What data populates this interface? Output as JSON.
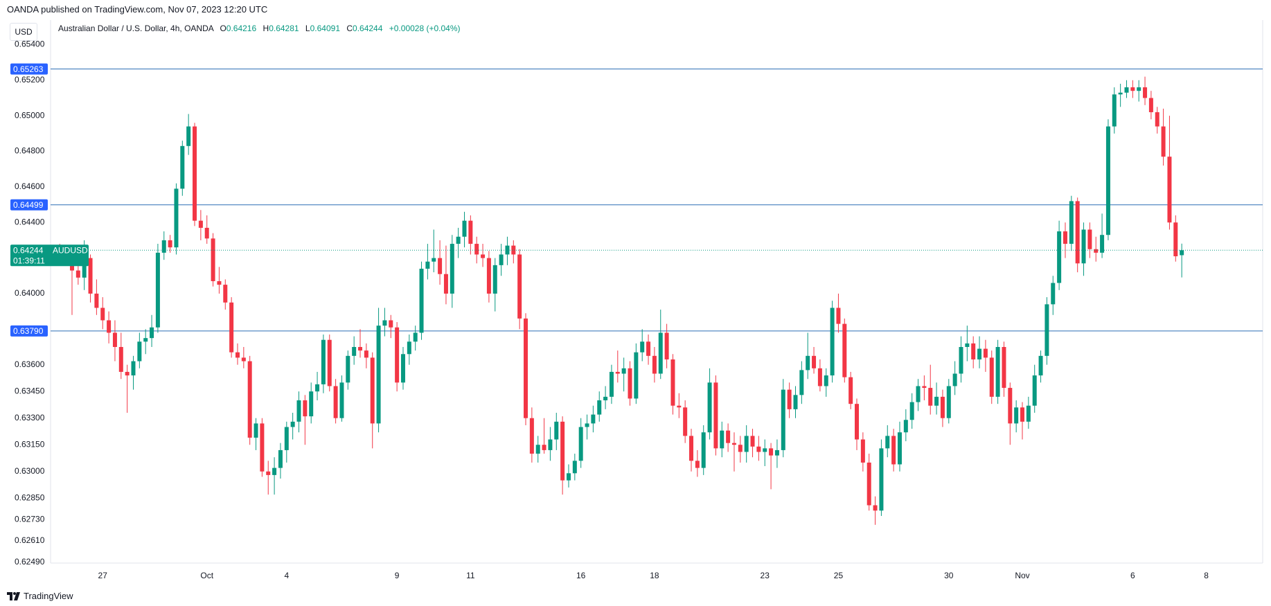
{
  "header": "OANDA published on TradingView.com, Nov 07, 2023 12:20 UTC",
  "currency": "USD",
  "brand": "TradingView",
  "chart_data": {
    "type": "candlestick",
    "legend": {
      "title": "Australian Dollar / U.S. Dollar, 4h, OANDA",
      "fields": [
        "O",
        "H",
        "L",
        "C"
      ],
      "change": "+0.00028 (+0.04%)"
    },
    "up_color": "#089981",
    "down_color": "#f23645",
    "line_color": "#2a6db5",
    "label_color": "#2962ff",
    "symbol_tag": "AUDUSD",
    "countdown": "01:39:11",
    "hlines": [
      0.65263,
      0.64499,
      {
        "value": 0.6379,
        "label": "0.63790"
      }
    ],
    "grid": false,
    "xlim": [
      -1.5,
      196.2
    ],
    "xticks": [
      {
        "value": 7,
        "label": "27"
      },
      {
        "value": 24,
        "label": "Oct"
      },
      {
        "value": 37,
        "label": "4"
      },
      {
        "value": 55,
        "label": "9"
      },
      {
        "value": 67,
        "label": "11"
      },
      {
        "value": 85,
        "label": "16"
      },
      {
        "value": 97,
        "label": "18"
      },
      {
        "value": 115,
        "label": "23"
      },
      {
        "value": 127,
        "label": "25"
      },
      {
        "value": 145,
        "label": "30"
      },
      {
        "value": 157,
        "label": "Nov"
      },
      {
        "value": 175,
        "label": "6"
      },
      {
        "value": 187,
        "label": "8"
      }
    ],
    "ylim": [
      0.62485,
      0.65538
    ],
    "yticks": [
      {
        "value": 0.654,
        "label": "0.65400"
      },
      {
        "value": 0.652,
        "label": "0.65200"
      },
      {
        "value": 0.65,
        "label": "0.65000"
      },
      {
        "value": 0.648,
        "label": "0.64800"
      },
      {
        "value": 0.646,
        "label": "0.64600"
      },
      {
        "value": 0.644,
        "label": "0.64400"
      },
      {
        "value": 0.64,
        "label": "0.64000"
      },
      {
        "value": 0.636,
        "label": "0.63600"
      },
      {
        "value": 0.6345,
        "label": "0.63450"
      },
      {
        "value": 0.633,
        "label": "0.63300"
      },
      {
        "value": 0.6315,
        "label": "0.63150"
      },
      {
        "value": 0.63,
        "label": "0.63000"
      },
      {
        "value": 0.6285,
        "label": "0.62850"
      },
      {
        "value": 0.6273,
        "label": "0.62730"
      },
      {
        "value": 0.6261,
        "label": "0.62610"
      },
      {
        "value": 0.6249,
        "label": "0.62490"
      }
    ],
    "ohlc": [
      [
        0.6424,
        0.6428,
        0.6421,
        0.6423
      ],
      [
        0.6423,
        0.6426,
        0.6419,
        0.6422
      ],
      [
        0.6422,
        0.6425,
        0.6388,
        0.6413
      ],
      [
        0.6413,
        0.6418,
        0.6405,
        0.6409
      ],
      [
        0.6409,
        0.643,
        0.6402,
        0.642
      ],
      [
        0.642,
        0.6422,
        0.6395,
        0.64
      ],
      [
        0.64,
        0.6408,
        0.6388,
        0.6392
      ],
      [
        0.6392,
        0.6398,
        0.638,
        0.6385
      ],
      [
        0.6385,
        0.639,
        0.6372,
        0.6378
      ],
      [
        0.6378,
        0.6385,
        0.6362,
        0.637
      ],
      [
        0.637,
        0.6378,
        0.6352,
        0.6356
      ],
      [
        0.6356,
        0.636,
        0.6333,
        0.6354
      ],
      [
        0.6354,
        0.6365,
        0.6346,
        0.6362
      ],
      [
        0.6362,
        0.6378,
        0.6358,
        0.6373
      ],
      [
        0.6373,
        0.638,
        0.6366,
        0.6375
      ],
      [
        0.6375,
        0.6388,
        0.637,
        0.6381
      ],
      [
        0.6381,
        0.6428,
        0.6378,
        0.6423
      ],
      [
        0.6423,
        0.6435,
        0.6419,
        0.643
      ],
      [
        0.643,
        0.6433,
        0.6423,
        0.6426
      ],
      [
        0.6426,
        0.6462,
        0.6422,
        0.6459
      ],
      [
        0.6459,
        0.6486,
        0.6455,
        0.6483
      ],
      [
        0.6483,
        0.6501,
        0.6478,
        0.6494
      ],
      [
        0.6494,
        0.6496,
        0.6438,
        0.6441
      ],
      [
        0.6441,
        0.6447,
        0.643,
        0.6437
      ],
      [
        0.6437,
        0.6444,
        0.6428,
        0.6431
      ],
      [
        0.6431,
        0.6434,
        0.6404,
        0.6407
      ],
      [
        0.6407,
        0.6415,
        0.64,
        0.6405
      ],
      [
        0.6405,
        0.6408,
        0.6391,
        0.6395
      ],
      [
        0.6395,
        0.6398,
        0.6364,
        0.6367
      ],
      [
        0.6367,
        0.6372,
        0.636,
        0.6364
      ],
      [
        0.6364,
        0.637,
        0.6358,
        0.6362
      ],
      [
        0.6362,
        0.6365,
        0.6315,
        0.6319
      ],
      [
        0.6319,
        0.633,
        0.6312,
        0.6327
      ],
      [
        0.6327,
        0.633,
        0.6297,
        0.63
      ],
      [
        0.63,
        0.6306,
        0.6287,
        0.6298
      ],
      [
        0.6298,
        0.6308,
        0.6287,
        0.6302
      ],
      [
        0.6302,
        0.6316,
        0.6296,
        0.6312
      ],
      [
        0.6312,
        0.6328,
        0.6305,
        0.6325
      ],
      [
        0.6325,
        0.6333,
        0.6318,
        0.6328
      ],
      [
        0.6328,
        0.6345,
        0.6322,
        0.634
      ],
      [
        0.634,
        0.6343,
        0.6315,
        0.6331
      ],
      [
        0.6331,
        0.635,
        0.6327,
        0.6345
      ],
      [
        0.6345,
        0.6356,
        0.634,
        0.6349
      ],
      [
        0.6349,
        0.6377,
        0.6344,
        0.6374
      ],
      [
        0.6374,
        0.6377,
        0.6345,
        0.6348
      ],
      [
        0.6348,
        0.6352,
        0.6327,
        0.633
      ],
      [
        0.633,
        0.6354,
        0.6328,
        0.635
      ],
      [
        0.635,
        0.6368,
        0.6346,
        0.6365
      ],
      [
        0.6365,
        0.6376,
        0.636,
        0.637
      ],
      [
        0.637,
        0.638,
        0.6364,
        0.6368
      ],
      [
        0.6368,
        0.6372,
        0.6358,
        0.6364
      ],
      [
        0.6364,
        0.6367,
        0.6313,
        0.6327
      ],
      [
        0.6327,
        0.6392,
        0.6322,
        0.6382
      ],
      [
        0.6382,
        0.6392,
        0.6376,
        0.6385
      ],
      [
        0.6385,
        0.6388,
        0.6375,
        0.6381
      ],
      [
        0.6381,
        0.6384,
        0.6345,
        0.635
      ],
      [
        0.635,
        0.637,
        0.6346,
        0.6366
      ],
      [
        0.6366,
        0.6377,
        0.636,
        0.6373
      ],
      [
        0.6373,
        0.6382,
        0.6368,
        0.6378
      ],
      [
        0.6378,
        0.6418,
        0.6374,
        0.6414
      ],
      [
        0.6414,
        0.6428,
        0.6408,
        0.6418
      ],
      [
        0.6418,
        0.6436,
        0.6412,
        0.642
      ],
      [
        0.642,
        0.643,
        0.6405,
        0.6411
      ],
      [
        0.6411,
        0.6427,
        0.6394,
        0.64
      ],
      [
        0.64,
        0.6433,
        0.6392,
        0.6428
      ],
      [
        0.6428,
        0.6437,
        0.642,
        0.6432
      ],
      [
        0.6432,
        0.6446,
        0.6426,
        0.6441
      ],
      [
        0.6441,
        0.6444,
        0.6422,
        0.6428
      ],
      [
        0.6428,
        0.6432,
        0.6417,
        0.6422
      ],
      [
        0.6422,
        0.6428,
        0.6415,
        0.642
      ],
      [
        0.642,
        0.6424,
        0.6395,
        0.64
      ],
      [
        0.64,
        0.642,
        0.639,
        0.6416
      ],
      [
        0.6416,
        0.6428,
        0.641,
        0.6422
      ],
      [
        0.6422,
        0.6432,
        0.6416,
        0.6427
      ],
      [
        0.6427,
        0.643,
        0.6417,
        0.6422
      ],
      [
        0.6422,
        0.6425,
        0.638,
        0.6386
      ],
      [
        0.6386,
        0.6389,
        0.6326,
        0.633
      ],
      [
        0.633,
        0.6336,
        0.6305,
        0.631
      ],
      [
        0.631,
        0.632,
        0.6305,
        0.6315
      ],
      [
        0.6315,
        0.633,
        0.631,
        0.6312
      ],
      [
        0.6312,
        0.6325,
        0.6306,
        0.6318
      ],
      [
        0.6318,
        0.6333,
        0.6312,
        0.6328
      ],
      [
        0.6328,
        0.6331,
        0.6287,
        0.6295
      ],
      [
        0.6295,
        0.6304,
        0.6291,
        0.6299
      ],
      [
        0.6299,
        0.631,
        0.6295,
        0.6306
      ],
      [
        0.6306,
        0.633,
        0.6302,
        0.6325
      ],
      [
        0.6325,
        0.6332,
        0.6318,
        0.6327
      ],
      [
        0.6327,
        0.6337,
        0.6322,
        0.6332
      ],
      [
        0.6332,
        0.6345,
        0.6328,
        0.634
      ],
      [
        0.634,
        0.6348,
        0.6335,
        0.6342
      ],
      [
        0.6342,
        0.636,
        0.6338,
        0.6356
      ],
      [
        0.6356,
        0.6368,
        0.635,
        0.6355
      ],
      [
        0.6355,
        0.6364,
        0.6345,
        0.6358
      ],
      [
        0.6358,
        0.6362,
        0.6337,
        0.6341
      ],
      [
        0.6341,
        0.6372,
        0.6338,
        0.6367
      ],
      [
        0.6367,
        0.638,
        0.6362,
        0.6373
      ],
      [
        0.6373,
        0.6377,
        0.636,
        0.6365
      ],
      [
        0.6365,
        0.637,
        0.635,
        0.6355
      ],
      [
        0.6355,
        0.6391,
        0.6352,
        0.6378
      ],
      [
        0.6378,
        0.6383,
        0.6358,
        0.6363
      ],
      [
        0.6363,
        0.6366,
        0.6332,
        0.6337
      ],
      [
        0.6337,
        0.6344,
        0.633,
        0.6336
      ],
      [
        0.6336,
        0.634,
        0.6316,
        0.632
      ],
      [
        0.632,
        0.6324,
        0.63,
        0.6306
      ],
      [
        0.6306,
        0.6312,
        0.6297,
        0.6302
      ],
      [
        0.6302,
        0.6326,
        0.6298,
        0.6322
      ],
      [
        0.6322,
        0.6358,
        0.6318,
        0.635
      ],
      [
        0.635,
        0.6354,
        0.6309,
        0.6313
      ],
      [
        0.6313,
        0.6328,
        0.6308,
        0.6323
      ],
      [
        0.6323,
        0.6327,
        0.6311,
        0.6316
      ],
      [
        0.6316,
        0.6322,
        0.63,
        0.6315
      ],
      [
        0.6315,
        0.632,
        0.6305,
        0.6311
      ],
      [
        0.6311,
        0.6326,
        0.6305,
        0.632
      ],
      [
        0.632,
        0.6324,
        0.6308,
        0.6314
      ],
      [
        0.6314,
        0.632,
        0.6306,
        0.6311
      ],
      [
        0.6311,
        0.6318,
        0.6303,
        0.6313
      ],
      [
        0.6313,
        0.6316,
        0.629,
        0.6309
      ],
      [
        0.6309,
        0.6318,
        0.6302,
        0.6312
      ],
      [
        0.6312,
        0.6352,
        0.6308,
        0.6346
      ],
      [
        0.6346,
        0.635,
        0.633,
        0.6335
      ],
      [
        0.6335,
        0.6348,
        0.633,
        0.6343
      ],
      [
        0.6343,
        0.6362,
        0.6338,
        0.6357
      ],
      [
        0.6357,
        0.6378,
        0.6352,
        0.6365
      ],
      [
        0.6365,
        0.637,
        0.6355,
        0.6358
      ],
      [
        0.6358,
        0.6363,
        0.6345,
        0.6348
      ],
      [
        0.6348,
        0.6358,
        0.6342,
        0.6354
      ],
      [
        0.6354,
        0.6396,
        0.635,
        0.6392
      ],
      [
        0.6392,
        0.64,
        0.6378,
        0.6383
      ],
      [
        0.6383,
        0.6386,
        0.635,
        0.6353
      ],
      [
        0.6353,
        0.6356,
        0.6335,
        0.6338
      ],
      [
        0.6338,
        0.6341,
        0.6312,
        0.6318
      ],
      [
        0.6318,
        0.6322,
        0.63,
        0.6305
      ],
      [
        0.6305,
        0.631,
        0.6278,
        0.6281
      ],
      [
        0.6281,
        0.6286,
        0.627,
        0.6278
      ],
      [
        0.6278,
        0.6318,
        0.6275,
        0.6313
      ],
      [
        0.6313,
        0.6326,
        0.6308,
        0.632
      ],
      [
        0.632,
        0.6324,
        0.63,
        0.6304
      ],
      [
        0.6304,
        0.6328,
        0.63,
        0.6322
      ],
      [
        0.6322,
        0.6335,
        0.6317,
        0.6329
      ],
      [
        0.6329,
        0.6344,
        0.6324,
        0.6339
      ],
      [
        0.6339,
        0.6352,
        0.6334,
        0.6348
      ],
      [
        0.6348,
        0.6354,
        0.634,
        0.6347
      ],
      [
        0.6347,
        0.636,
        0.6332,
        0.6337
      ],
      [
        0.6337,
        0.635,
        0.6332,
        0.6342
      ],
      [
        0.6342,
        0.6346,
        0.6325,
        0.633
      ],
      [
        0.633,
        0.6352,
        0.6327,
        0.6348
      ],
      [
        0.6348,
        0.6362,
        0.6343,
        0.6355
      ],
      [
        0.6355,
        0.6376,
        0.635,
        0.637
      ],
      [
        0.637,
        0.6382,
        0.6362,
        0.6372
      ],
      [
        0.6372,
        0.6376,
        0.6358,
        0.6363
      ],
      [
        0.6363,
        0.6376,
        0.6358,
        0.6369
      ],
      [
        0.6369,
        0.6374,
        0.6356,
        0.6364
      ],
      [
        0.6364,
        0.6368,
        0.6338,
        0.6342
      ],
      [
        0.6342,
        0.6374,
        0.6338,
        0.637
      ],
      [
        0.637,
        0.6373,
        0.6342,
        0.6347
      ],
      [
        0.6347,
        0.635,
        0.6315,
        0.6327
      ],
      [
        0.6327,
        0.634,
        0.6322,
        0.6336
      ],
      [
        0.6336,
        0.6339,
        0.6318,
        0.6328
      ],
      [
        0.6328,
        0.6342,
        0.6324,
        0.6337
      ],
      [
        0.6337,
        0.636,
        0.6333,
        0.6354
      ],
      [
        0.6354,
        0.6368,
        0.635,
        0.6365
      ],
      [
        0.6365,
        0.6398,
        0.636,
        0.6394
      ],
      [
        0.6394,
        0.641,
        0.6388,
        0.6406
      ],
      [
        0.6406,
        0.6441,
        0.6402,
        0.6435
      ],
      [
        0.6435,
        0.644,
        0.642,
        0.6428
      ],
      [
        0.6428,
        0.6455,
        0.6424,
        0.6452
      ],
      [
        0.6452,
        0.6454,
        0.6412,
        0.6417
      ],
      [
        0.6417,
        0.644,
        0.641,
        0.6436
      ],
      [
        0.6436,
        0.644,
        0.642,
        0.6425
      ],
      [
        0.6425,
        0.6432,
        0.6418,
        0.6423
      ],
      [
        0.6423,
        0.6445,
        0.642,
        0.6433
      ],
      [
        0.6433,
        0.6498,
        0.643,
        0.6494
      ],
      [
        0.6494,
        0.6516,
        0.649,
        0.6512
      ],
      [
        0.6512,
        0.6518,
        0.6505,
        0.6513
      ],
      [
        0.6513,
        0.652,
        0.651,
        0.6516
      ],
      [
        0.6516,
        0.652,
        0.651,
        0.6514
      ],
      [
        0.6514,
        0.652,
        0.6508,
        0.6516
      ],
      [
        0.6516,
        0.6522,
        0.6506,
        0.651
      ],
      [
        0.651,
        0.6514,
        0.6498,
        0.6502
      ],
      [
        0.6502,
        0.6505,
        0.649,
        0.6494
      ],
      [
        0.6494,
        0.6504,
        0.6472,
        0.6477
      ],
      [
        0.6477,
        0.65,
        0.6436,
        0.644
      ],
      [
        0.644,
        0.6444,
        0.6418,
        0.6421
      ],
      [
        0.64216,
        0.64281,
        0.64091,
        0.64244
      ]
    ]
  }
}
